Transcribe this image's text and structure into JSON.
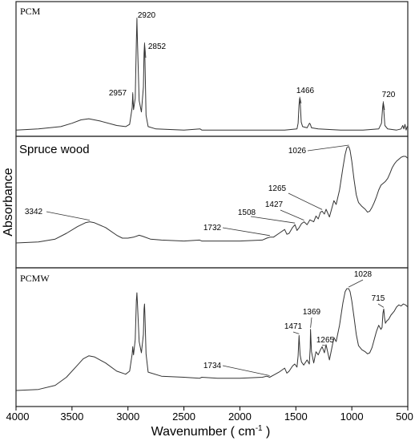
{
  "chart_data": {
    "type": "line",
    "xlabel": "Wavenumber ( cm",
    "xlabel_sup": "-1",
    "xlabel_end": " )",
    "ylabel": "Absorbance",
    "x_range": [
      4000,
      500
    ],
    "x_ticks": [
      "4000",
      "3500",
      "3000",
      "2500",
      "2000",
      "1500",
      "1000",
      "500"
    ],
    "panels": [
      {
        "title": "PCM",
        "series": [
          {
            "x": [
              4000,
              3800,
              3600,
              3500,
              3420,
              3350,
              3250,
              3100,
              3020,
              2985,
              2962,
              2957,
              2950,
              2935,
              2925,
              2920,
              2915,
              2900,
              2880,
              2862,
              2856,
              2852,
              2848,
              2838,
              2820,
              2750,
              2500,
              2355,
              2340,
              2000,
              1800,
              1600,
              1490,
              1480,
              1472,
              1466,
              1460,
              1452,
              1440,
              1400,
              1378,
              1370,
              1360,
              1300,
              1100,
              900,
              760,
              735,
              725,
              720,
              715,
              705,
              680,
              600,
              560,
              545,
              535,
              525,
              515,
              505,
              500
            ],
            "y": [
              0.02,
              0.03,
              0.05,
              0.08,
              0.11,
              0.12,
              0.1,
              0.06,
              0.05,
              0.07,
              0.22,
              0.34,
              0.2,
              0.3,
              0.8,
              1.0,
              0.8,
              0.28,
              0.18,
              0.4,
              0.7,
              0.78,
              0.62,
              0.15,
              0.05,
              0.03,
              0.02,
              0.03,
              0.02,
              0.02,
              0.02,
              0.02,
              0.03,
              0.08,
              0.24,
              0.3,
              0.24,
              0.09,
              0.05,
              0.04,
              0.08,
              0.07,
              0.04,
              0.03,
              0.02,
              0.02,
              0.03,
              0.08,
              0.22,
              0.26,
              0.2,
              0.06,
              0.03,
              0.02,
              0.03,
              0.06,
              0.03,
              0.07,
              0.02,
              0.05,
              0.04
            ]
          }
        ],
        "annotations": [
          {
            "x": 2957,
            "label": "2957"
          },
          {
            "x": 2920,
            "label": "2920"
          },
          {
            "x": 2852,
            "label": "2852"
          },
          {
            "x": 1466,
            "label": "1466"
          },
          {
            "x": 720,
            "label": "720"
          }
        ]
      },
      {
        "title": "Spruce wood",
        "series": [
          {
            "x": [
              4000,
              3800,
              3650,
              3550,
              3450,
              3380,
              3342,
              3300,
              3200,
              3100,
              3050,
              3000,
              2950,
              2900,
              2870,
              2800,
              2700,
              2500,
              2360,
              2340,
              2200,
              2000,
              1800,
              1760,
              1732,
              1700,
              1650,
              1600,
              1580,
              1560,
              1530,
              1508,
              1490,
              1470,
              1450,
              1427,
              1400,
              1375,
              1340,
              1320,
              1300,
              1280,
              1265,
              1245,
              1230,
              1200,
              1160,
              1140,
              1110,
              1080,
              1060,
              1045,
              1035,
              1026,
              1015,
              1000,
              980,
              960,
              940,
              910,
              880,
              860,
              840,
              820,
              800,
              780,
              760,
              740,
              720,
              700,
              680,
              660,
              640,
              620,
              600,
              580,
              560,
              540,
              520,
              500
            ],
            "y": [
              0.0,
              0.01,
              0.04,
              0.1,
              0.17,
              0.21,
              0.22,
              0.21,
              0.16,
              0.08,
              0.05,
              0.05,
              0.06,
              0.08,
              0.07,
              0.04,
              0.03,
              0.02,
              0.03,
              0.02,
              0.02,
              0.02,
              0.03,
              0.05,
              0.06,
              0.06,
              0.1,
              0.14,
              0.09,
              0.1,
              0.16,
              0.19,
              0.13,
              0.16,
              0.2,
              0.22,
              0.19,
              0.24,
              0.22,
              0.28,
              0.25,
              0.32,
              0.33,
              0.3,
              0.35,
              0.27,
              0.44,
              0.4,
              0.55,
              0.78,
              0.92,
              0.99,
              1.0,
              1.0,
              0.96,
              0.85,
              0.66,
              0.5,
              0.42,
              0.38,
              0.35,
              0.32,
              0.33,
              0.37,
              0.42,
              0.48,
              0.55,
              0.6,
              0.62,
              0.64,
              0.67,
              0.72,
              0.78,
              0.82,
              0.85,
              0.87,
              0.89,
              0.9,
              0.9,
              0.88
            ]
          }
        ],
        "annotations": [
          {
            "x": 3342,
            "label": "3342"
          },
          {
            "x": 1732,
            "label": "1732"
          },
          {
            "x": 1508,
            "label": "1508"
          },
          {
            "x": 1427,
            "label": "1427"
          },
          {
            "x": 1265,
            "label": "1265"
          },
          {
            "x": 1026,
            "label": "1026"
          }
        ]
      },
      {
        "title": "PCMW",
        "series": [
          {
            "x": [
              4000,
              3800,
              3650,
              3550,
              3450,
              3400,
              3350,
              3300,
              3200,
              3100,
              3020,
              2985,
              2962,
              2957,
              2950,
              2935,
              2925,
              2920,
              2915,
              2900,
              2880,
              2862,
              2856,
              2852,
              2848,
              2838,
              2820,
              2700,
              2500,
              2360,
              2340,
              2200,
              2000,
              1800,
              1760,
              1734,
              1700,
              1650,
              1600,
              1580,
              1560,
              1530,
              1510,
              1490,
              1480,
              1471,
              1462,
              1450,
              1430,
              1400,
              1380,
              1372,
              1369,
              1360,
              1340,
              1320,
              1300,
              1280,
              1265,
              1245,
              1230,
              1200,
              1160,
              1140,
              1110,
              1080,
              1060,
              1045,
              1035,
              1028,
              1015,
              1000,
              980,
              960,
              940,
              910,
              880,
              860,
              840,
              820,
              800,
              780,
              760,
              740,
              730,
              722,
              715,
              708,
              700,
              690,
              670,
              650,
              620,
              600,
              580,
              560,
              540,
              520,
              500
            ],
            "y": [
              0.0,
              0.01,
              0.05,
              0.13,
              0.25,
              0.31,
              0.34,
              0.33,
              0.27,
              0.19,
              0.16,
              0.19,
              0.36,
              0.43,
              0.35,
              0.5,
              0.88,
              0.96,
              0.85,
              0.48,
              0.37,
              0.55,
              0.8,
              0.85,
              0.72,
              0.36,
              0.18,
              0.14,
              0.13,
              0.12,
              0.13,
              0.12,
              0.12,
              0.13,
              0.14,
              0.13,
              0.15,
              0.18,
              0.22,
              0.17,
              0.19,
              0.24,
              0.26,
              0.23,
              0.34,
              0.54,
              0.35,
              0.28,
              0.25,
              0.3,
              0.26,
              0.42,
              0.6,
              0.38,
              0.27,
              0.38,
              0.35,
              0.4,
              0.43,
              0.37,
              0.45,
              0.3,
              0.52,
              0.48,
              0.64,
              0.86,
              0.97,
              1.0,
              1.0,
              1.0,
              0.97,
              0.88,
              0.72,
              0.55,
              0.44,
              0.4,
              0.38,
              0.36,
              0.37,
              0.42,
              0.5,
              0.58,
              0.64,
              0.6,
              0.62,
              0.76,
              0.8,
              0.72,
              0.66,
              0.68,
              0.7,
              0.74,
              0.78,
              0.82,
              0.84,
              0.83,
              0.85,
              0.84,
              0.82
            ]
          }
        ],
        "annotations": [
          {
            "x": 1734,
            "label": "1734"
          },
          {
            "x": 1471,
            "label": "1471"
          },
          {
            "x": 1369,
            "label": "1369"
          },
          {
            "x": 1265,
            "label": "1265"
          },
          {
            "x": 1028,
            "label": "1028"
          },
          {
            "x": 715,
            "label": "715"
          }
        ]
      }
    ]
  }
}
